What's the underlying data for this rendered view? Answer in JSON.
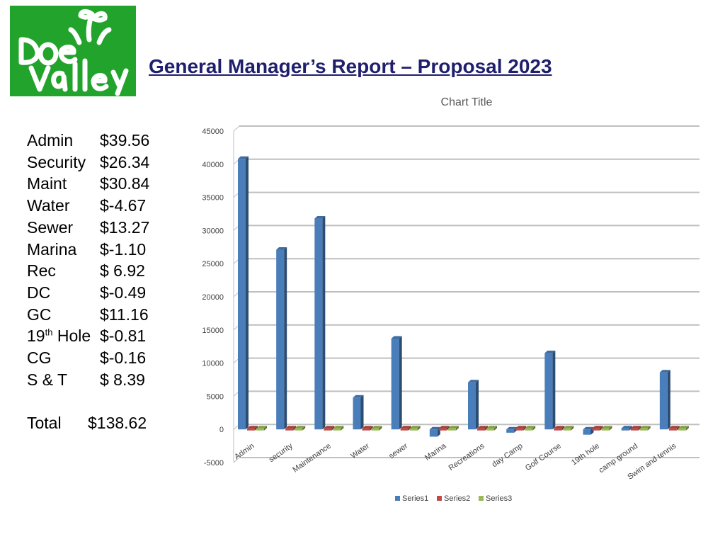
{
  "header": {
    "logo_text": "Doe Valley",
    "title": "General Manager’s Report – Proposal 2023"
  },
  "summary": {
    "rows": [
      {
        "label": "Admin",
        "sup": "",
        "label_suffix": "",
        "value": "$39.56"
      },
      {
        "label": "Security",
        "sup": "",
        "label_suffix": "",
        "value": "$26.34"
      },
      {
        "label": "Maint",
        "sup": "",
        "label_suffix": "",
        "value": "$30.84"
      },
      {
        "label": "Water",
        "sup": "",
        "label_suffix": "",
        "value": "$-4.67"
      },
      {
        "label": "Sewer",
        "sup": "",
        "label_suffix": "",
        "value": "$13.27"
      },
      {
        "label": "Marina",
        "sup": "",
        "label_suffix": "",
        "value": "$-1.10"
      },
      {
        "label": "Rec",
        "sup": "",
        "label_suffix": "",
        "value": "$ 6.92"
      },
      {
        "label": "DC",
        "sup": "",
        "label_suffix": "",
        "value": "$-0.49"
      },
      {
        "label": "GC",
        "sup": "",
        "label_suffix": "",
        "value": "$11.16"
      },
      {
        "label": "19",
        "sup": "th",
        "label_suffix": " Hole",
        "value": "$-0.81"
      },
      {
        "label": "CG",
        "sup": "",
        "label_suffix": "",
        "value": "$-0.16"
      },
      {
        "label": "S & T",
        "sup": "",
        "label_suffix": "",
        "value": "$ 8.39"
      }
    ],
    "total_label": "Total",
    "total_value": "$138.62"
  },
  "colors": {
    "title": "#1f1f6e",
    "logo_green": "#22a32c",
    "series1": "#4a7ebb",
    "series2": "#be4b48",
    "series3": "#98b954",
    "gridline": "#bfbfbf"
  },
  "chart_data": {
    "type": "bar",
    "style": "3d-clustered-column",
    "title": "Chart Title",
    "categories": [
      "Admin",
      "security",
      "Maintenance",
      "Water",
      "sewer",
      "Marina",
      "Recreations",
      "day Camp",
      "Golf Course",
      "19th hole",
      "camp ground",
      "Swim and tennis"
    ],
    "series": [
      {
        "name": "Series1",
        "values": [
          40800,
          27100,
          31800,
          4800,
          13700,
          -1100,
          7100,
          -500,
          11500,
          -800,
          -150,
          8600
        ]
      },
      {
        "name": "Series2",
        "values": [
          0,
          0,
          0,
          0,
          0,
          0,
          0,
          0,
          0,
          0,
          0,
          0
        ]
      },
      {
        "name": "Series3",
        "values": [
          0,
          0,
          0,
          0,
          0,
          0,
          0,
          0,
          0,
          0,
          0,
          0
        ]
      }
    ],
    "yticks": [
      -5000,
      0,
      5000,
      10000,
      15000,
      20000,
      25000,
      30000,
      35000,
      40000,
      45000
    ],
    "ylim": [
      -5000,
      45000
    ],
    "xlabel": "",
    "ylabel": "",
    "grid": true,
    "legend": "bottom"
  }
}
